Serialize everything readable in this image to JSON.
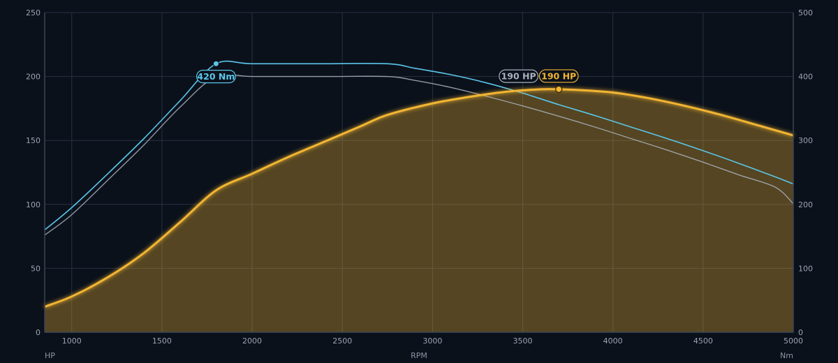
{
  "chart_data": {
    "type": "line",
    "title": "",
    "xlabel": "RPM",
    "ylabel": "HP",
    "y2label": "Nm",
    "xlim": [
      850,
      5000
    ],
    "ylim": [
      0,
      250
    ],
    "y2lim": [
      0,
      500
    ],
    "x_ticks": [
      "1000",
      "1500",
      "2000",
      "2500",
      "3000",
      "3500",
      "4000",
      "4500",
      "5000"
    ],
    "y_ticks": [
      "0",
      "50",
      "100",
      "150",
      "200",
      "250"
    ],
    "y2_ticks": [
      "0",
      "100",
      "200",
      "300",
      "400",
      "500"
    ],
    "grid": true,
    "colors": {
      "power": "#f2b531",
      "torque": "#5bc6ea",
      "baseline": "#a9b1bd",
      "grid": "#263242",
      "axis": "#3a4656"
    },
    "series": [
      {
        "key": "power",
        "axis": "left",
        "x": [
          850,
          1000,
          1200,
          1400,
          1600,
          1800,
          2000,
          2200,
          2400,
          2600,
          2750,
          3000,
          3200,
          3400,
          3600,
          3700,
          3800,
          4000,
          4200,
          4400,
          4600,
          4800,
          5000
        ],
        "y": [
          20,
          28,
          43,
          62,
          86,
          111,
          124,
          137,
          149,
          161,
          170,
          179,
          184,
          188,
          190,
          190,
          189.5,
          187.5,
          183,
          177,
          170,
          162,
          154
        ]
      },
      {
        "key": "torque",
        "axis": "right",
        "x": [
          850,
          1000,
          1200,
          1400,
          1600,
          1800,
          2000,
          2400,
          2750,
          2900,
          3100,
          3300,
          3500,
          3700,
          3900,
          4100,
          4300,
          4500,
          4700,
          4900,
          5000
        ],
        "y": [
          160,
          195,
          248,
          303,
          362,
          420,
          420,
          420,
          420,
          413,
          403,
          390,
          374,
          356,
          339,
          321,
          303,
          284,
          264,
          243,
          232
        ]
      },
      {
        "key": "baseline",
        "axis": "right",
        "x": [
          850,
          1000,
          1200,
          1400,
          1600,
          1800,
          2000,
          2400,
          2750,
          2900,
          3100,
          3300,
          3500,
          3700,
          3900,
          4100,
          4300,
          4500,
          4700,
          4900,
          5000
        ],
        "y": [
          152,
          184,
          238,
          293,
          352,
          400,
          400,
          400,
          400,
          394,
          383,
          369,
          354,
          338,
          321,
          303,
          285,
          266,
          246,
          227,
          201
        ]
      }
    ],
    "annotations": [
      {
        "key": "torque_peak",
        "label": "420 Nm",
        "x": 1800,
        "y": 420,
        "axis": "right",
        "color": "#5bc6ea"
      },
      {
        "key": "power_peak",
        "label": "190 HP",
        "x": 3700,
        "y": 190,
        "axis": "left",
        "color": "#f2b531"
      },
      {
        "key": "baseline_peak",
        "label": "190 HP",
        "x": 3450,
        "y": 200,
        "axis": "left",
        "color": "#a9b1bd"
      }
    ]
  }
}
